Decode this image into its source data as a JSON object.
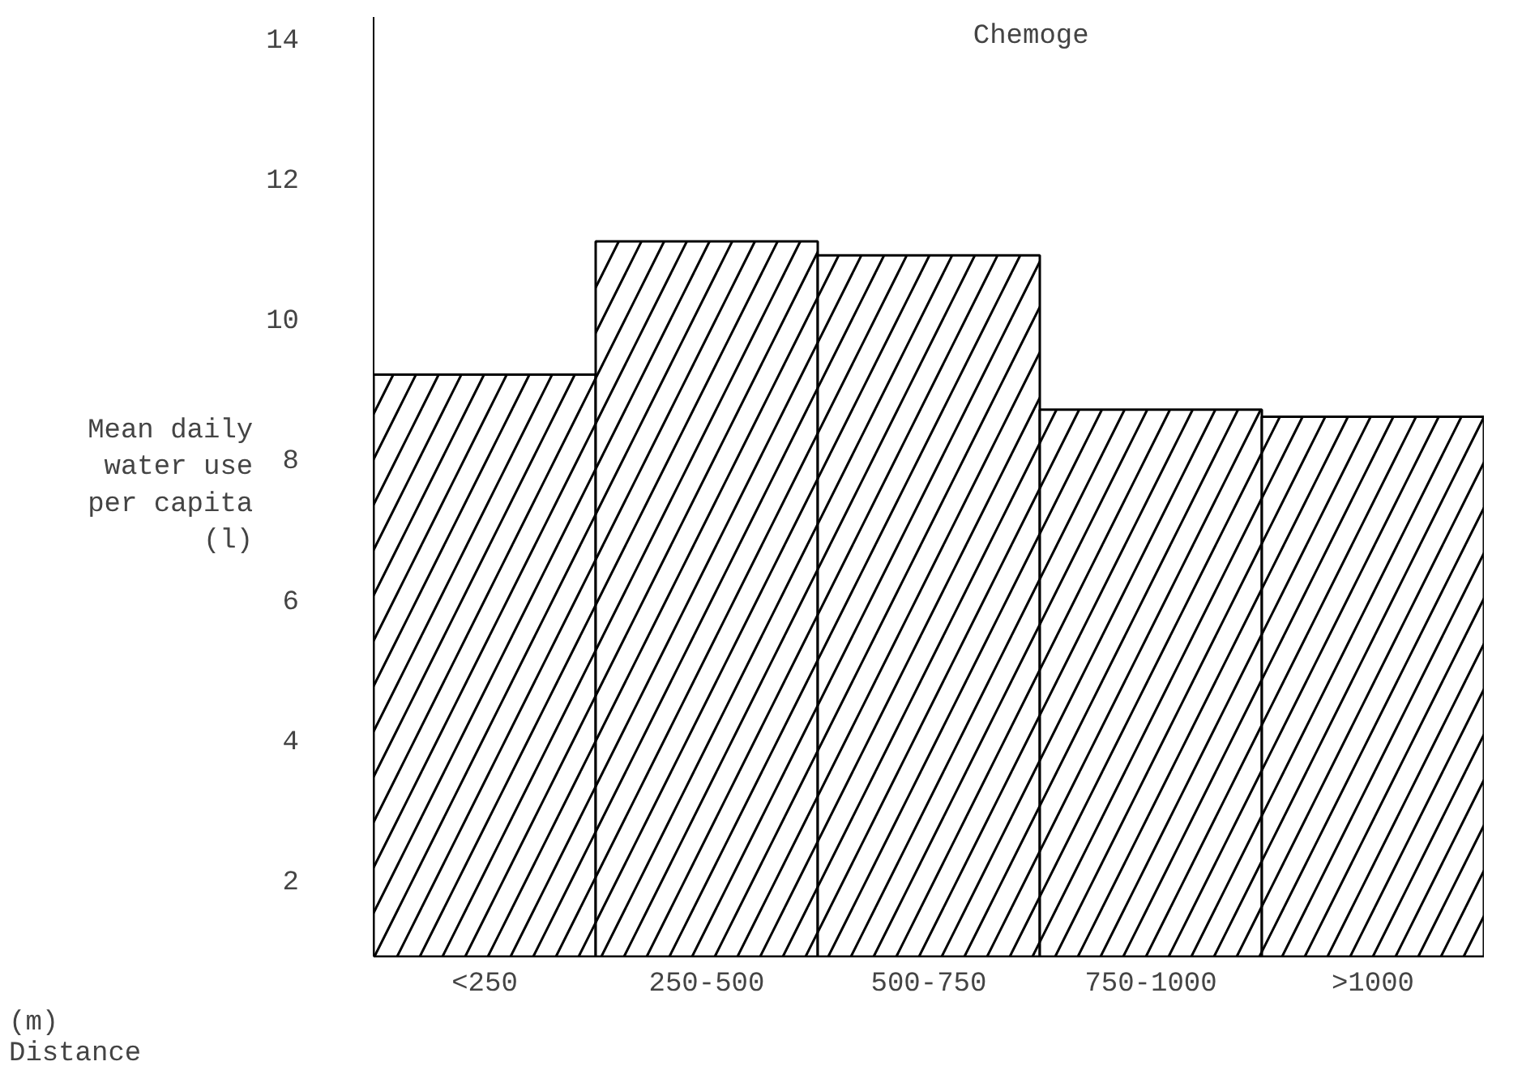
{
  "chart_data": {
    "type": "bar",
    "title": "Chemoge",
    "ylabel": "Mean daily\nwater use\nper capita\n(l)",
    "xlabel": "(m)\nDistance",
    "categories": [
      "<250",
      "250-500",
      "500-750",
      "750-1000",
      ">1000"
    ],
    "values": [
      9.2,
      11.1,
      10.9,
      8.7,
      8.6
    ],
    "color": "#ffffff",
    "ylim": [
      0.9,
      14.3
    ],
    "yticks": [
      2,
      4,
      6,
      8,
      10,
      12,
      14
    ],
    "grid": false
  }
}
